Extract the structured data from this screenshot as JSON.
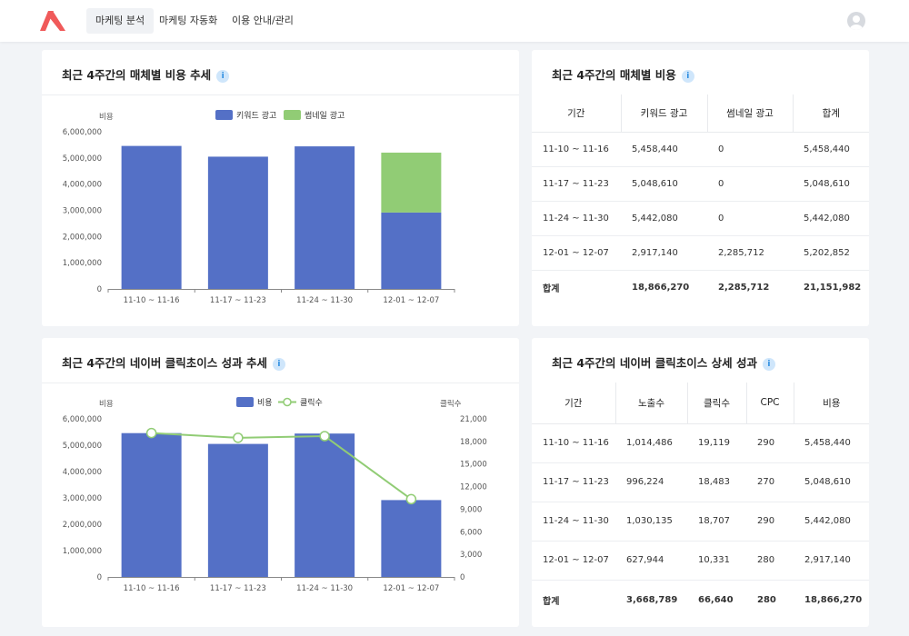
{
  "nav": {
    "items": [
      "마케팅 분석",
      "마케팅 자동화",
      "이용 안내/관리"
    ]
  },
  "colors": {
    "keyword": "#5470c6",
    "thumbnail": "#91cc75",
    "line": "#91cc75",
    "logo": "#f05a5a"
  },
  "cards": {
    "cost_trend": {
      "title": "최근 4주간의 매체별 비용 추세",
      "ylabel": "비용",
      "legend": [
        "키워드 광고",
        "썸네일 광고"
      ]
    },
    "cost_table": {
      "title": "최근 4주간의 매체별 비용",
      "headers": [
        "기간",
        "키워드 광고",
        "썸네일 광고",
        "합계"
      ],
      "rows": [
        [
          "11-10 ~ 11-16",
          "5,458,440",
          "0",
          "5,458,440"
        ],
        [
          "11-17 ~ 11-23",
          "5,048,610",
          "0",
          "5,048,610"
        ],
        [
          "11-24 ~ 11-30",
          "5,442,080",
          "0",
          "5,442,080"
        ],
        [
          "12-01 ~ 12-07",
          "2,917,140",
          "2,285,712",
          "5,202,852"
        ]
      ],
      "total": [
        "합계",
        "18,866,270",
        "2,285,712",
        "21,151,982"
      ]
    },
    "click_trend": {
      "title": "최근 4주간의 네이버 클릭초이스 성과 추세",
      "ylabel_left": "비용",
      "ylabel_right": "클릭수",
      "legend": [
        "비용",
        "클릭수"
      ]
    },
    "click_table": {
      "title": "최근 4주간의 네이버 클릭초이스 상세 성과",
      "headers": [
        "기간",
        "노출수",
        "클릭수",
        "CPC",
        "비용"
      ],
      "rows": [
        [
          "11-10 ~ 11-16",
          "1,014,486",
          "19,119",
          "290",
          "5,458,440"
        ],
        [
          "11-17 ~ 11-23",
          "996,224",
          "18,483",
          "270",
          "5,048,610"
        ],
        [
          "11-24 ~ 11-30",
          "1,030,135",
          "18,707",
          "290",
          "5,442,080"
        ],
        [
          "12-01 ~ 12-07",
          "627,944",
          "10,331",
          "280",
          "2,917,140"
        ]
      ],
      "total": [
        "합계",
        "3,668,789",
        "66,640",
        "280",
        "18,866,270"
      ]
    }
  },
  "chart_data": [
    {
      "type": "bar",
      "stacked": true,
      "categories": [
        "11-10 ~ 11-16",
        "11-17 ~ 11-23",
        "11-24 ~ 11-30",
        "12-01 ~ 12-07"
      ],
      "series": [
        {
          "name": "키워드 광고",
          "values": [
            5458440,
            5048610,
            5442080,
            2917140
          ]
        },
        {
          "name": "썸네일 광고",
          "values": [
            0,
            0,
            0,
            2285712
          ]
        }
      ],
      "ylabel": "비용",
      "ylim": [
        0,
        6000000
      ],
      "yticks": [
        "0",
        "1,000,000",
        "2,000,000",
        "3,000,000",
        "4,000,000",
        "5,000,000",
        "6,000,000"
      ],
      "legend_position": "top"
    },
    {
      "type": "bar",
      "categories": [
        "11-10 ~ 11-16",
        "11-17 ~ 11-23",
        "11-24 ~ 11-30",
        "12-01 ~ 12-07"
      ],
      "series": [
        {
          "name": "비용",
          "type": "bar",
          "axis": "left",
          "values": [
            5458440,
            5048610,
            5442080,
            2917140
          ]
        },
        {
          "name": "클릭수",
          "type": "line",
          "axis": "right",
          "values": [
            19119,
            18483,
            18707,
            10331
          ]
        }
      ],
      "ylabel": "비용",
      "ylabel_right": "클릭수",
      "ylim": [
        0,
        6000000
      ],
      "ylim_right": [
        0,
        21000
      ],
      "yticks": [
        "0",
        "1,000,000",
        "2,000,000",
        "3,000,000",
        "4,000,000",
        "5,000,000",
        "6,000,000"
      ],
      "yticks_right": [
        "0",
        "3,000",
        "6,000",
        "9,000",
        "12,000",
        "15,000",
        "18,000",
        "21,000"
      ],
      "legend_position": "top"
    }
  ]
}
